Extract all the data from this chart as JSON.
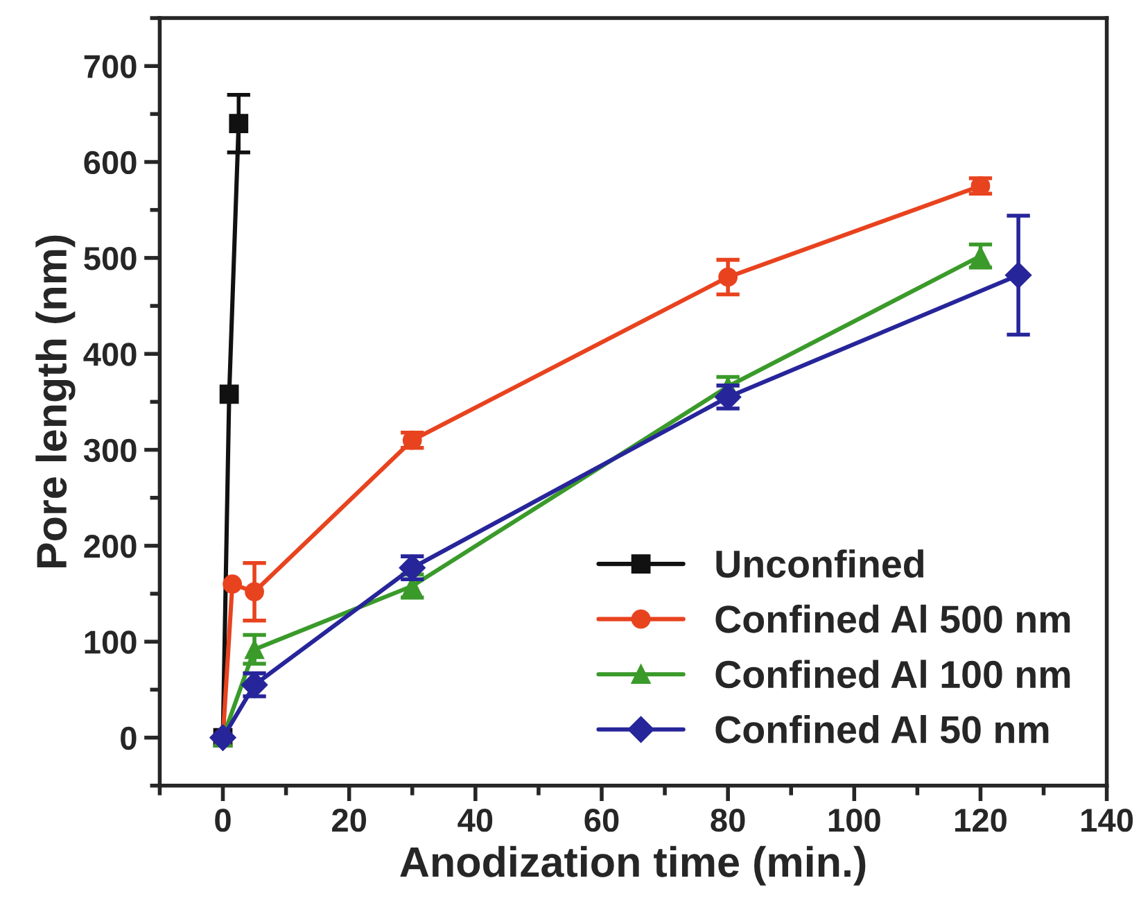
{
  "chart_data": {
    "type": "line",
    "xlabel": "Anodization time (min.)",
    "ylabel": "Pore length (nm)",
    "xlim": [
      -10,
      140
    ],
    "xticks": [
      0,
      20,
      40,
      60,
      80,
      100,
      120,
      140
    ],
    "ylim": [
      -50,
      750
    ],
    "yticks": [
      0,
      100,
      200,
      300,
      400,
      500,
      600,
      700
    ],
    "legend": "bottom right",
    "grid": false,
    "series": [
      {
        "name": "Unconfined",
        "color": "#111111",
        "marker": "square",
        "x": [
          0,
          1,
          2.5
        ],
        "values": [
          0,
          358,
          640
        ],
        "errors": [
          null,
          null,
          30
        ]
      },
      {
        "name": "Confined Al 500 nm",
        "color": "#e8431f",
        "marker": "circle",
        "x": [
          0,
          1.5,
          5,
          30,
          80,
          120
        ],
        "values": [
          0,
          160,
          152,
          310,
          480,
          575
        ],
        "errors": [
          null,
          null,
          30,
          8,
          18,
          8
        ]
      },
      {
        "name": "Confined Al 100 nm",
        "color": "#3a9a2a",
        "marker": "triangle",
        "x": [
          0,
          5,
          30,
          80,
          120
        ],
        "values": [
          0,
          92,
          158,
          366,
          502
        ],
        "errors": [
          null,
          15,
          12,
          10,
          12
        ]
      },
      {
        "name": "Confined Al 50 nm",
        "color": "#27259a",
        "marker": "diamond",
        "x": [
          0,
          5,
          30,
          80,
          126
        ],
        "values": [
          0,
          55,
          177,
          355,
          482
        ],
        "errors": [
          null,
          12,
          12,
          12,
          62
        ]
      }
    ]
  }
}
